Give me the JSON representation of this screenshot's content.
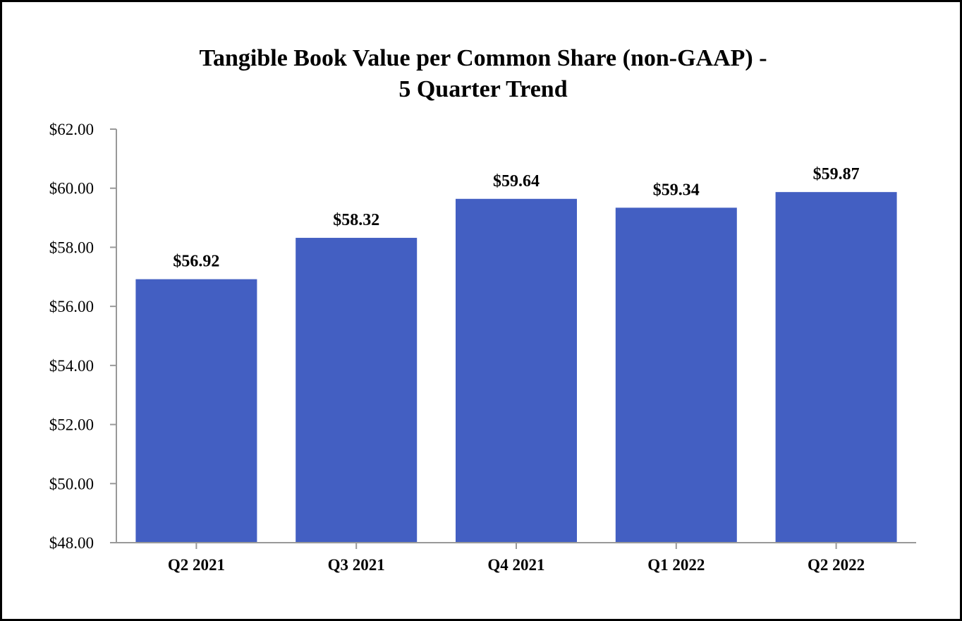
{
  "chart_data": {
    "type": "bar",
    "title_line1": "Tangible Book Value per Common Share (non-GAAP) -",
    "title_line2": "5 Quarter Trend",
    "categories": [
      "Q2 2021",
      "Q3 2021",
      "Q4 2021",
      "Q1 2022",
      "Q2 2022"
    ],
    "values": [
      56.92,
      58.32,
      59.64,
      59.34,
      59.87
    ],
    "data_labels": [
      "$56.92",
      "$58.32",
      "$59.64",
      "$59.34",
      "$59.87"
    ],
    "y_ticks": [
      "$48.00",
      "$50.00",
      "$52.00",
      "$54.00",
      "$56.00",
      "$58.00",
      "$60.00",
      "$62.00"
    ],
    "ylim": [
      48,
      62
    ],
    "xlabel": "",
    "ylabel": "",
    "grid": false,
    "legend": "none",
    "bar_color": "#435FC2",
    "axis_color": "#999999"
  }
}
